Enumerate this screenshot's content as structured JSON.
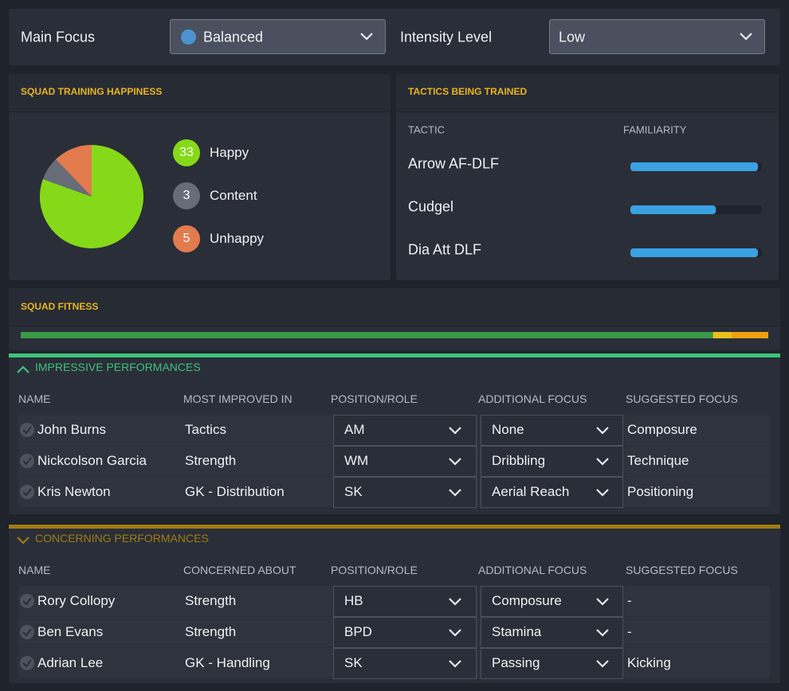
{
  "header": {
    "main_focus_label": "Main Focus",
    "main_focus_value": "Balanced",
    "intensity_label": "Intensity Level",
    "intensity_value": "Low"
  },
  "happiness": {
    "title": "SQUAD TRAINING HAPPINESS",
    "items": [
      {
        "label": "Happy",
        "value": 33,
        "color": "#86d918"
      },
      {
        "label": "Content",
        "value": 3,
        "color": "#666c78"
      },
      {
        "label": "Unhappy",
        "value": 5,
        "color": "#e27b4e"
      }
    ]
  },
  "tactics": {
    "title": "TACTICS BEING TRAINED",
    "columns": [
      "TACTIC",
      "FAMILIARITY"
    ],
    "rows": [
      {
        "name": "Arrow AF-DLF",
        "familiarity": 97
      },
      {
        "name": "Cudgel",
        "familiarity": 65
      },
      {
        "name": "Dia Att DLF",
        "familiarity": 97
      }
    ]
  },
  "fitness": {
    "title": "SQUAD FITNESS",
    "segments": [
      {
        "value": 92.6,
        "color": "#3a9a48"
      },
      {
        "value": 2.5,
        "color": "#e8c21a"
      },
      {
        "value": 4.9,
        "color": "#f0a010"
      }
    ]
  },
  "impressive": {
    "title": "IMPRESSIVE PERFORMANCES",
    "color": "#3ec27a",
    "columns": [
      "NAME",
      "MOST IMPROVED IN",
      "POSITION/ROLE",
      "ADDITIONAL FOCUS",
      "SUGGESTED FOCUS"
    ],
    "rows": [
      [
        "John Burns",
        "Tactics",
        "AM",
        "None",
        "Composure"
      ],
      [
        "Nickcolson Garcia",
        "Strength",
        "WM",
        "Dribbling",
        "Technique"
      ],
      [
        "Kris Newton",
        "GK - Distribution",
        "SK",
        "Aerial Reach",
        "Positioning"
      ]
    ]
  },
  "concerning": {
    "title": "CONCERNING PERFORMANCES",
    "color": "#a07c12",
    "columns": [
      "NAME",
      "CONCERNED ABOUT",
      "POSITION/ROLE",
      "ADDITIONAL FOCUS",
      "SUGGESTED FOCUS"
    ],
    "rows": [
      [
        "Rory Collopy",
        "Strength",
        "HB",
        "Composure",
        "-"
      ],
      [
        "Ben Evans",
        "Strength",
        "BPD",
        "Stamina",
        "-"
      ],
      [
        "Adrian Lee",
        "GK - Handling",
        "SK",
        "Passing",
        "Kicking"
      ]
    ]
  }
}
